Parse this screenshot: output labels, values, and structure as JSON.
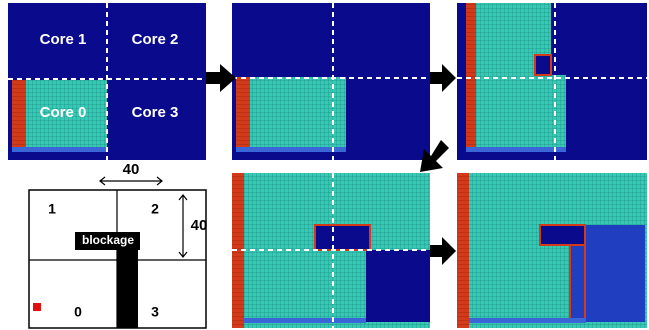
{
  "panel_1": {
    "cores": [
      "Core 1",
      "Core 2",
      "Core 0",
      "Core 3"
    ]
  },
  "schematic": {
    "width_label": "40",
    "height_label": "40",
    "regions": [
      "1",
      "2",
      "0",
      "3"
    ],
    "blockage": "blockage"
  }
}
